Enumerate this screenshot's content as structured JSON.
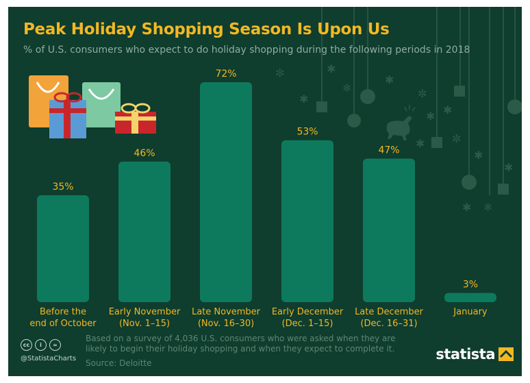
{
  "header": {
    "title": "Peak Holiday Shopping Season Is Upon Us",
    "subtitle": "% of U.S. consumers who expect to do holiday shopping during the following periods in 2018"
  },
  "chart_data": {
    "type": "bar",
    "categories": [
      [
        "Before the",
        "end of October"
      ],
      [
        "Early November",
        "(Nov. 1–15)"
      ],
      [
        "Late November",
        "(Nov. 16–30)"
      ],
      [
        "Early December",
        "(Dec. 1–15)"
      ],
      [
        "Late December",
        "(Dec. 16–31)"
      ],
      [
        "January"
      ]
    ],
    "values": [
      35,
      46,
      72,
      53,
      47,
      3
    ],
    "value_labels": [
      "35%",
      "46%",
      "72%",
      "53%",
      "47%",
      "3%"
    ],
    "ylim": [
      0,
      72
    ],
    "grid": false,
    "colors": {
      "bar": "#0e7a5d",
      "label": "#f2b824",
      "background": "#0f3d2e"
    }
  },
  "footer": {
    "note": "Based on a survey of 4,036 U.S. consumers who were asked when they are likely to begin their holiday shopping and when they expect to complete it.",
    "source": "Source: Deloitte",
    "handle": "@StatistaCharts",
    "brand": "statista",
    "license_icons": [
      "cc-icon",
      "by-icon",
      "nd-icon"
    ]
  }
}
